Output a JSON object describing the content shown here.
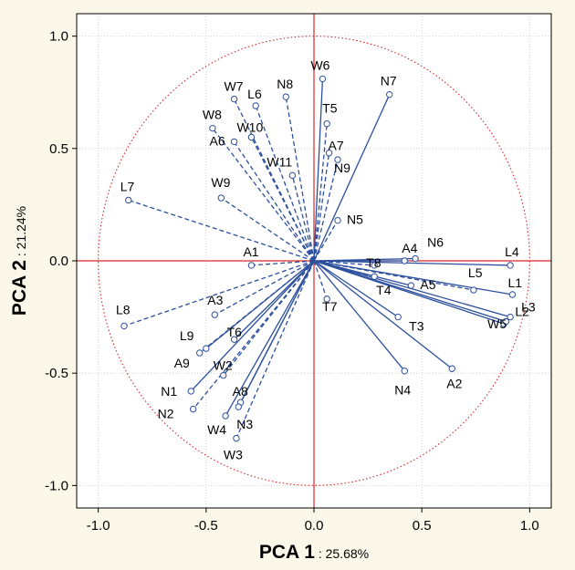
{
  "chart_data": {
    "type": "scatter",
    "title": "",
    "x_axis": {
      "label_main": "PCA 1",
      "label_suffix": " : 25.68%",
      "range": [
        -1.1,
        1.1
      ],
      "ticks": [
        -1.0,
        -0.5,
        0.0,
        0.5,
        1.0
      ],
      "tick_labels": [
        "-1.0",
        "-0.5",
        "0.0",
        "0.5",
        "1.0"
      ]
    },
    "y_axis": {
      "label_main": "PCA 2",
      "label_suffix": " : 21.24%",
      "range": [
        -1.1,
        1.1
      ],
      "ticks": [
        -1.0,
        -0.5,
        0.0,
        0.5,
        1.0
      ],
      "tick_labels": [
        "-1.0",
        "-0.5",
        "0.0",
        "0.5",
        "1.0"
      ]
    },
    "grid": true,
    "unit_circle": true,
    "colors": {
      "vector": "#2c4f9e",
      "circle": "#d62728",
      "plot_bg": "#ffffff",
      "page_bg": "#fbf7e9",
      "grid": "#c8c8c8",
      "text": "#000000"
    },
    "points": [
      {
        "label": "W6",
        "x": 0.04,
        "y": 0.81,
        "style": "solid"
      },
      {
        "label": "N7",
        "x": 0.35,
        "y": 0.74,
        "style": "solid"
      },
      {
        "label": "N8",
        "x": -0.13,
        "y": 0.73,
        "style": "dashed"
      },
      {
        "label": "W7",
        "x": -0.37,
        "y": 0.72,
        "style": "dashed"
      },
      {
        "label": "L6",
        "x": -0.27,
        "y": 0.69,
        "style": "dashed"
      },
      {
        "label": "T5",
        "x": 0.06,
        "y": 0.61,
        "style": "dashed"
      },
      {
        "label": "W8",
        "x": -0.47,
        "y": 0.59,
        "style": "dashed"
      },
      {
        "label": "W10",
        "x": -0.29,
        "y": 0.55,
        "style": "dashed"
      },
      {
        "label": "A6",
        "x": -0.37,
        "y": 0.53,
        "style": "dashed"
      },
      {
        "label": "A7",
        "x": 0.07,
        "y": 0.48,
        "style": "dashed"
      },
      {
        "label": "N9",
        "x": 0.11,
        "y": 0.45,
        "style": "dashed"
      },
      {
        "label": "W11",
        "x": -0.1,
        "y": 0.38,
        "style": "dashed"
      },
      {
        "label": "W9",
        "x": -0.43,
        "y": 0.28,
        "style": "dashed"
      },
      {
        "label": "L7",
        "x": -0.86,
        "y": 0.27,
        "style": "dashed"
      },
      {
        "label": "N5",
        "x": 0.11,
        "y": 0.18,
        "style": "dashed"
      },
      {
        "label": "A1",
        "x": -0.29,
        "y": -0.02,
        "style": "dashed"
      },
      {
        "label": "L4",
        "x": 0.91,
        "y": -0.02,
        "style": "solid"
      },
      {
        "label": "N6",
        "x": 0.47,
        "y": 0.01,
        "style": "solid"
      },
      {
        "label": "A4",
        "x": 0.42,
        "y": 0.0,
        "style": "solid"
      },
      {
        "label": "T8",
        "x": 0.28,
        "y": -0.02,
        "style": "dashed"
      },
      {
        "label": "A5",
        "x": 0.45,
        "y": -0.11,
        "style": "solid"
      },
      {
        "label": "L5",
        "x": 0.74,
        "y": -0.13,
        "style": "dashed"
      },
      {
        "label": "L1",
        "x": 0.92,
        "y": -0.15,
        "style": "solid"
      },
      {
        "label": "L3",
        "x": 0.91,
        "y": -0.25,
        "style": "solid"
      },
      {
        "label": "W5",
        "x": 0.88,
        "y": -0.28,
        "style": "solid"
      },
      {
        "label": "L2",
        "x": 0.89,
        "y": -0.27,
        "style": "solid"
      },
      {
        "label": "T4",
        "x": 0.28,
        "y": -0.07,
        "style": "dashed"
      },
      {
        "label": "T3",
        "x": 0.39,
        "y": -0.25,
        "style": "solid"
      },
      {
        "label": "T7",
        "x": 0.06,
        "y": -0.17,
        "style": "dashed"
      },
      {
        "label": "A2",
        "x": 0.64,
        "y": -0.48,
        "style": "solid"
      },
      {
        "label": "N4",
        "x": 0.42,
        "y": -0.49,
        "style": "solid"
      },
      {
        "label": "A3",
        "x": -0.46,
        "y": -0.24,
        "style": "dashed"
      },
      {
        "label": "L8",
        "x": -0.88,
        "y": -0.29,
        "style": "dashed"
      },
      {
        "label": "T6",
        "x": -0.37,
        "y": -0.35,
        "style": "solid"
      },
      {
        "label": "L9",
        "x": -0.5,
        "y": -0.39,
        "style": "solid"
      },
      {
        "label": "A9",
        "x": -0.53,
        "y": -0.41,
        "style": "dashed"
      },
      {
        "label": "W2",
        "x": -0.42,
        "y": -0.51,
        "style": "dashed"
      },
      {
        "label": "N1",
        "x": -0.57,
        "y": -0.58,
        "style": "solid"
      },
      {
        "label": "N2",
        "x": -0.56,
        "y": -0.66,
        "style": "dashed"
      },
      {
        "label": "A8",
        "x": -0.34,
        "y": -0.63,
        "style": "solid"
      },
      {
        "label": "N3",
        "x": -0.35,
        "y": -0.65,
        "style": "solid"
      },
      {
        "label": "W4",
        "x": -0.41,
        "y": -0.69,
        "style": "solid"
      },
      {
        "label": "W3",
        "x": -0.36,
        "y": -0.79,
        "style": "dashed"
      }
    ]
  }
}
